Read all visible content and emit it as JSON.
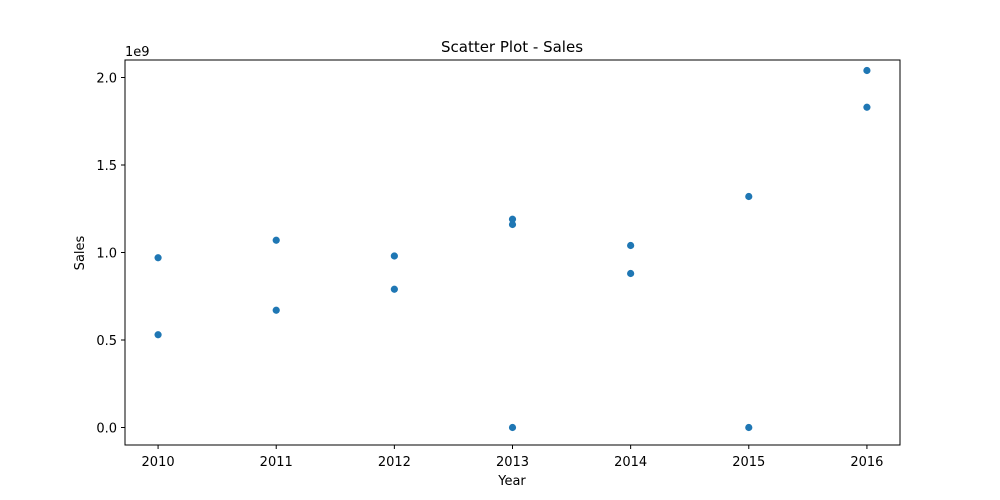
{
  "chart_data": {
    "type": "scatter",
    "title": "Scatter Plot - Sales",
    "xlabel": "Year",
    "ylabel": "Sales",
    "y_offset_label": "1e9",
    "xlim": [
      2009.72,
      2016.28
    ],
    "ylim": [
      -0.1,
      2.1
    ],
    "x_ticks": [
      2010,
      2011,
      2012,
      2013,
      2014,
      2015,
      2016
    ],
    "x_tick_labels": [
      "2010",
      "2011",
      "2012",
      "2013",
      "2014",
      "2015",
      "2016"
    ],
    "y_ticks": [
      0.0,
      0.5,
      1.0,
      1.5,
      2.0
    ],
    "y_tick_labels": [
      "0.0",
      "0.5",
      "1.0",
      "1.5",
      "2.0"
    ],
    "grid": false,
    "legend": "none",
    "marker_color": "#1f77b4",
    "points": [
      {
        "x": 2010,
        "y": 0.97
      },
      {
        "x": 2010,
        "y": 0.53
      },
      {
        "x": 2011,
        "y": 1.07
      },
      {
        "x": 2011,
        "y": 0.67
      },
      {
        "x": 2012,
        "y": 0.98
      },
      {
        "x": 2012,
        "y": 0.79
      },
      {
        "x": 2013,
        "y": 1.19
      },
      {
        "x": 2013,
        "y": 1.16
      },
      {
        "x": 2013,
        "y": 0.0
      },
      {
        "x": 2014,
        "y": 1.04
      },
      {
        "x": 2014,
        "y": 0.88
      },
      {
        "x": 2015,
        "y": 1.32
      },
      {
        "x": 2015,
        "y": 0.0
      },
      {
        "x": 2016,
        "y": 2.04
      },
      {
        "x": 2016,
        "y": 1.83
      }
    ]
  }
}
